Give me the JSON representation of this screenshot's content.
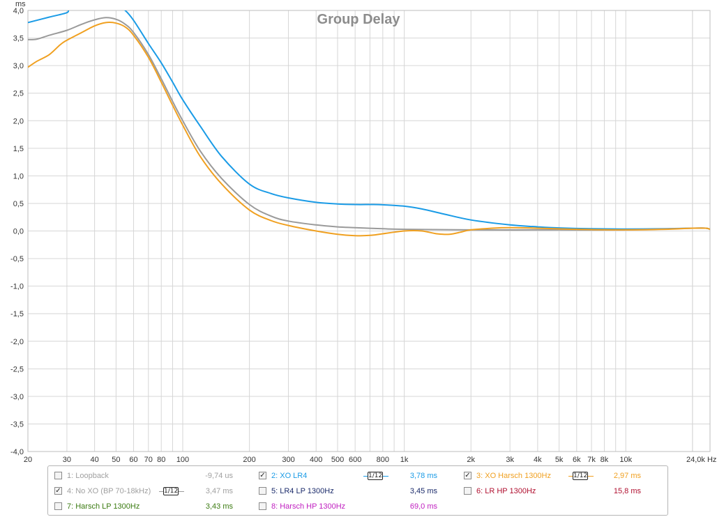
{
  "chart_data": {
    "type": "line",
    "title": "Group Delay",
    "ylabel": "ms",
    "x_scale": "log",
    "xlim": [
      20,
      24000
    ],
    "ylim": [
      -4.0,
      4.0
    ],
    "grid": true,
    "x_ticks": [
      {
        "v": 20,
        "label": "20"
      },
      {
        "v": 30,
        "label": "30"
      },
      {
        "v": 40,
        "label": "40"
      },
      {
        "v": 50,
        "label": "50"
      },
      {
        "v": 60,
        "label": "60"
      },
      {
        "v": 70,
        "label": "70"
      },
      {
        "v": 80,
        "label": "80"
      },
      {
        "v": 100,
        "label": "100"
      },
      {
        "v": 200,
        "label": "200"
      },
      {
        "v": 300,
        "label": "300"
      },
      {
        "v": 400,
        "label": "400"
      },
      {
        "v": 500,
        "label": "500"
      },
      {
        "v": 600,
        "label": "600"
      },
      {
        "v": 800,
        "label": "800"
      },
      {
        "v": 1000,
        "label": "1k"
      },
      {
        "v": 2000,
        "label": "2k"
      },
      {
        "v": 3000,
        "label": "3k"
      },
      {
        "v": 4000,
        "label": "4k"
      },
      {
        "v": 5000,
        "label": "5k"
      },
      {
        "v": 6000,
        "label": "6k"
      },
      {
        "v": 7000,
        "label": "7k"
      },
      {
        "v": 8000,
        "label": "8k"
      },
      {
        "v": 10000,
        "label": "10k"
      },
      {
        "v": 24000,
        "label": "24,0k Hz"
      }
    ],
    "y_ticks": [
      {
        "v": 4.0,
        "label": "4,0"
      },
      {
        "v": 3.5,
        "label": "3,5"
      },
      {
        "v": 3.0,
        "label": "3,0"
      },
      {
        "v": 2.5,
        "label": "2,5"
      },
      {
        "v": 2.0,
        "label": "2,0"
      },
      {
        "v": 1.5,
        "label": "1,5"
      },
      {
        "v": 1.0,
        "label": "1,0"
      },
      {
        "v": 0.5,
        "label": "0,5"
      },
      {
        "v": 0.0,
        "label": "0,0"
      },
      {
        "v": -0.5,
        "label": "-0,5"
      },
      {
        "v": -1.0,
        "label": "-1,0"
      },
      {
        "v": -1.5,
        "label": "-1,5"
      },
      {
        "v": -2.0,
        "label": "-2,0"
      },
      {
        "v": -2.5,
        "label": "-2,5"
      },
      {
        "v": -3.0,
        "label": "-3,0"
      },
      {
        "v": -3.5,
        "label": "-3,5"
      },
      {
        "v": -4.0,
        "label": "-4,0"
      }
    ],
    "series": [
      {
        "name": "2: XO LR4",
        "color": "#1a9be6",
        "points": [
          [
            20,
            3.78
          ],
          [
            25,
            3.88
          ],
          [
            30,
            3.96
          ],
          [
            32,
            4.05
          ],
          [
            50,
            4.1
          ],
          [
            55,
            4.0
          ],
          [
            60,
            3.82
          ],
          [
            70,
            3.4
          ],
          [
            80,
            3.05
          ],
          [
            90,
            2.7
          ],
          [
            100,
            2.38
          ],
          [
            120,
            1.9
          ],
          [
            150,
            1.35
          ],
          [
            200,
            0.85
          ],
          [
            250,
            0.68
          ],
          [
            300,
            0.6
          ],
          [
            400,
            0.52
          ],
          [
            500,
            0.49
          ],
          [
            600,
            0.48
          ],
          [
            700,
            0.48
          ],
          [
            800,
            0.475
          ],
          [
            1000,
            0.45
          ],
          [
            1200,
            0.4
          ],
          [
            1500,
            0.31
          ],
          [
            2000,
            0.2
          ],
          [
            3000,
            0.11
          ],
          [
            4000,
            0.075
          ],
          [
            5000,
            0.055
          ],
          [
            7000,
            0.04
          ],
          [
            10000,
            0.035
          ],
          [
            15000,
            0.04
          ],
          [
            20000,
            0.05
          ],
          [
            23000,
            0.05
          ],
          [
            24000,
            0.03
          ]
        ]
      },
      {
        "name": "4: No XO (BP 70-18kHz)",
        "color": "#9a9a9a",
        "points": [
          [
            20,
            3.47
          ],
          [
            22,
            3.48
          ],
          [
            25,
            3.55
          ],
          [
            30,
            3.64
          ],
          [
            35,
            3.75
          ],
          [
            40,
            3.83
          ],
          [
            45,
            3.87
          ],
          [
            50,
            3.84
          ],
          [
            55,
            3.75
          ],
          [
            60,
            3.6
          ],
          [
            70,
            3.2
          ],
          [
            80,
            2.76
          ],
          [
            90,
            2.35
          ],
          [
            100,
            2.0
          ],
          [
            120,
            1.45
          ],
          [
            150,
            0.95
          ],
          [
            200,
            0.48
          ],
          [
            250,
            0.27
          ],
          [
            300,
            0.18
          ],
          [
            400,
            0.11
          ],
          [
            500,
            0.075
          ],
          [
            600,
            0.06
          ],
          [
            800,
            0.04
          ],
          [
            1000,
            0.03
          ],
          [
            2000,
            0.02
          ],
          [
            5000,
            0.02
          ],
          [
            10000,
            0.02
          ],
          [
            20000,
            0.05
          ],
          [
            23000,
            0.05
          ],
          [
            24000,
            0.03
          ]
        ]
      },
      {
        "name": "3: XO Harsch 1300Hz",
        "color": "#f0a020",
        "points": [
          [
            20,
            2.97
          ],
          [
            22,
            3.08
          ],
          [
            25,
            3.2
          ],
          [
            28,
            3.38
          ],
          [
            30,
            3.46
          ],
          [
            35,
            3.6
          ],
          [
            40,
            3.72
          ],
          [
            45,
            3.78
          ],
          [
            50,
            3.77
          ],
          [
            55,
            3.7
          ],
          [
            60,
            3.55
          ],
          [
            70,
            3.15
          ],
          [
            80,
            2.7
          ],
          [
            90,
            2.28
          ],
          [
            100,
            1.92
          ],
          [
            120,
            1.35
          ],
          [
            150,
            0.85
          ],
          [
            200,
            0.38
          ],
          [
            250,
            0.19
          ],
          [
            300,
            0.1
          ],
          [
            400,
            0.0
          ],
          [
            500,
            -0.06
          ],
          [
            600,
            -0.085
          ],
          [
            700,
            -0.08
          ],
          [
            800,
            -0.05
          ],
          [
            1000,
            0.0
          ],
          [
            1200,
            0.0
          ],
          [
            1400,
            -0.05
          ],
          [
            1600,
            -0.06
          ],
          [
            1800,
            -0.02
          ],
          [
            2000,
            0.02
          ],
          [
            2500,
            0.05
          ],
          [
            3000,
            0.06
          ],
          [
            4000,
            0.05
          ],
          [
            6000,
            0.03
          ],
          [
            10000,
            0.02
          ],
          [
            15000,
            0.03
          ],
          [
            20000,
            0.05
          ],
          [
            23000,
            0.05
          ],
          [
            24000,
            0.03
          ]
        ]
      }
    ]
  },
  "legend": {
    "items": [
      {
        "name": "1: Loopback",
        "value": "-9,74 us",
        "checked": false,
        "color": "#9a9a9a"
      },
      {
        "name": "2: XO LR4",
        "value": "3,78 ms",
        "checked": true,
        "color": "#1a9be6",
        "smoothing": "1/12"
      },
      {
        "name": "3: XO Harsch 1300Hz",
        "value": "2,97 ms",
        "checked": true,
        "color": "#f0a020",
        "smoothing": "1/12"
      },
      {
        "name": "4: No XO (BP 70-18kHz)",
        "value": "3,47 ms",
        "checked": true,
        "color": "#9a9a9a",
        "smoothing": "1/12"
      },
      {
        "name": "5: LR4 LP 1300Hz",
        "value": "3,45 ms",
        "checked": false,
        "color": "#1a2a6a"
      },
      {
        "name": "6: LR HP 1300Hz",
        "value": "15,8 ms",
        "checked": false,
        "color": "#b01030"
      },
      {
        "name": "7: Harsch LP 1300Hz",
        "value": "3,43 ms",
        "checked": false,
        "color": "#3a7a10"
      },
      {
        "name": "8: Harsch HP 1300Hz",
        "value": "69,0 ms",
        "checked": false,
        "color": "#c020c0"
      }
    ],
    "check_glyph": "✓"
  }
}
